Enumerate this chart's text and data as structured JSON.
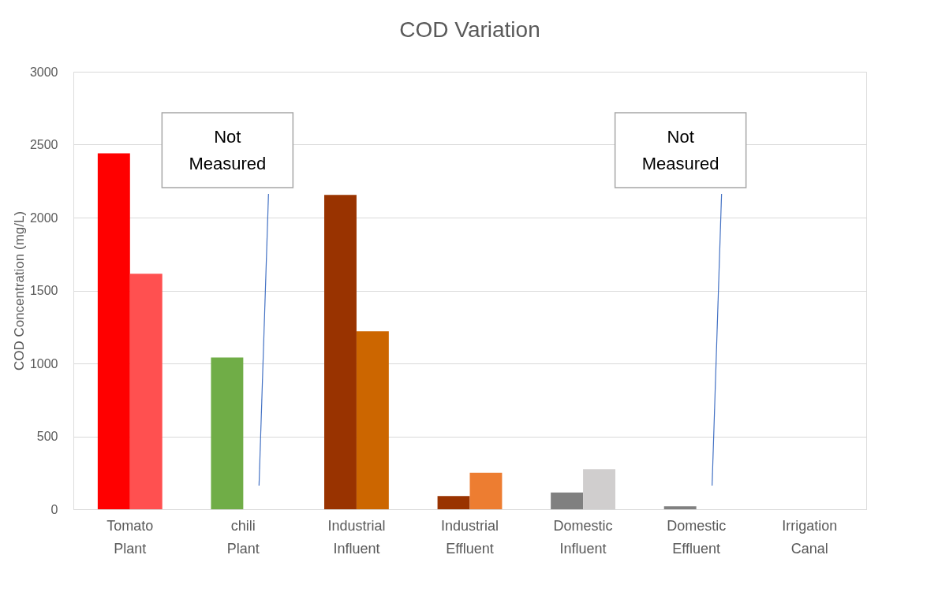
{
  "chart_data": {
    "type": "bar",
    "title": "COD Variation",
    "ylabel": "COD Concentration (mg/L)",
    "categories": [
      "Tomato Plant",
      "chili Plant",
      "Industrial Influent",
      "Industrial Effluent",
      "Domestic Influent",
      "Domestic Effluent",
      "Irrigation Canal"
    ],
    "series": [
      {
        "colors": [
          "#ff0000",
          "#70ad47",
          "#993300",
          "#993300",
          "#808080",
          "#808080",
          null
        ],
        "values": [
          2440,
          1040,
          2155,
          90,
          115,
          20,
          null
        ]
      },
      {
        "colors": [
          "#ff5050",
          null,
          "#cc6600",
          "#ed7d31",
          "#d0cece",
          null,
          null
        ],
        "values": [
          1615,
          null,
          1220,
          250,
          275,
          null,
          null
        ]
      }
    ],
    "ylim": [
      0,
      3000
    ],
    "yticks": [
      0,
      500,
      1000,
      1500,
      2000,
      2500,
      3000
    ],
    "grid": "y",
    "annotations": [
      "Not Measured",
      "Not Measured"
    ]
  }
}
